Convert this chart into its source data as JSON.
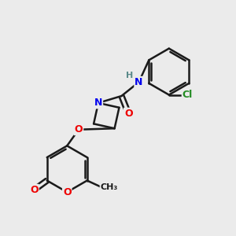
{
  "bg_color": "#ebebeb",
  "bond_color": "#1a1a1a",
  "bond_width": 1.8,
  "atom_colors": {
    "N": "#0000ee",
    "O": "#ee0000",
    "Cl": "#228b22",
    "H": "#5a8a8a",
    "C": "#1a1a1a"
  },
  "font_size": 9,
  "figsize": [
    3.0,
    3.0
  ],
  "dpi": 100,
  "xlim": [
    0,
    10
  ],
  "ylim": [
    0,
    10
  ]
}
